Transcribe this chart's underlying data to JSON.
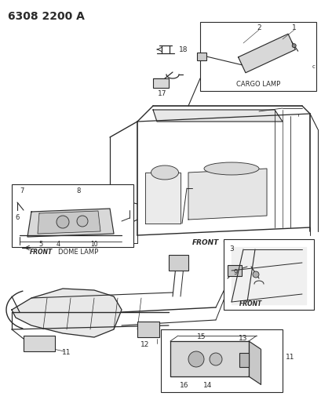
{
  "title": "6308 2200 A",
  "bg_color": "#ffffff",
  "line_color": "#2a2a2a",
  "title_fontsize": 10,
  "label_fontsize": 7,
  "small_fontsize": 6,
  "cargo_lamp_label": "CARGO LAMP",
  "dome_lamp_label": "DOME LAMP",
  "front_label": "FRONT",
  "figsize": [
    4.1,
    5.33
  ],
  "dpi": 100
}
